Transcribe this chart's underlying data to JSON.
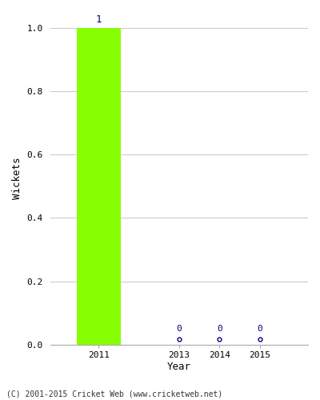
{
  "years": [
    2011,
    2013,
    2014,
    2015
  ],
  "wickets": [
    1,
    0,
    0,
    0
  ],
  "bar_color": "#88ff00",
  "label_color": "#000080",
  "xlabel": "Year",
  "ylabel": "Wickets",
  "ylim": [
    0.0,
    1.05
  ],
  "yticks": [
    0.0,
    0.2,
    0.4,
    0.6,
    0.8,
    1.0
  ],
  "xlim": [
    2009.8,
    2016.2
  ],
  "background_color": "#ffffff",
  "footnote": "(C) 2001-2015 Cricket Web (www.cricketweb.net)",
  "bar_width": 1.1,
  "zero_marker_color": "#000080",
  "zero_marker_size": 3.5,
  "grid_color": "#cccccc"
}
